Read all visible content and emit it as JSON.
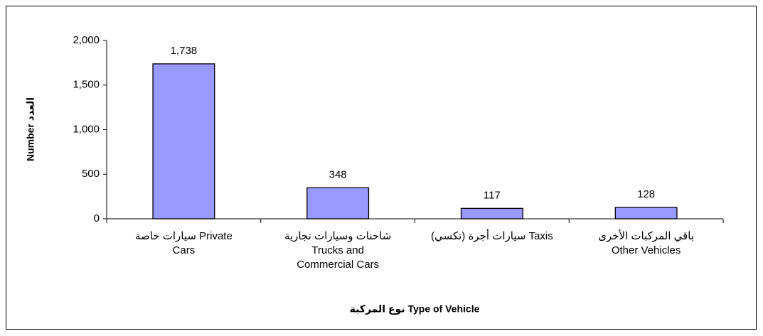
{
  "chart_data": {
    "type": "bar",
    "categories": [
      [
        "سيارات خاصة Private",
        "Cars"
      ],
      [
        "شاحنات وسيارات تجارية",
        "Trucks and",
        "Commercial Cars"
      ],
      [
        "سيارات أجرة (تكسي) Taxis"
      ],
      [
        "باقي المركبات الأخرى",
        "Other Vehicles"
      ]
    ],
    "values": [
      1738,
      348,
      117,
      128
    ],
    "value_labels": [
      "1,738",
      "348",
      "117",
      "128"
    ],
    "color": "#9999ff",
    "ylim": [
      0,
      2000
    ],
    "yticks": [
      0,
      500,
      {
        "value": 1000,
        "label": "1,000"
      },
      {
        "value": 1500,
        "label": "1,500"
      },
      {
        "value": 2000,
        "label": "2,000"
      }
    ],
    "y_label": "Number العدد",
    "x_label": "نوع المركبة Type of Vehicle"
  }
}
